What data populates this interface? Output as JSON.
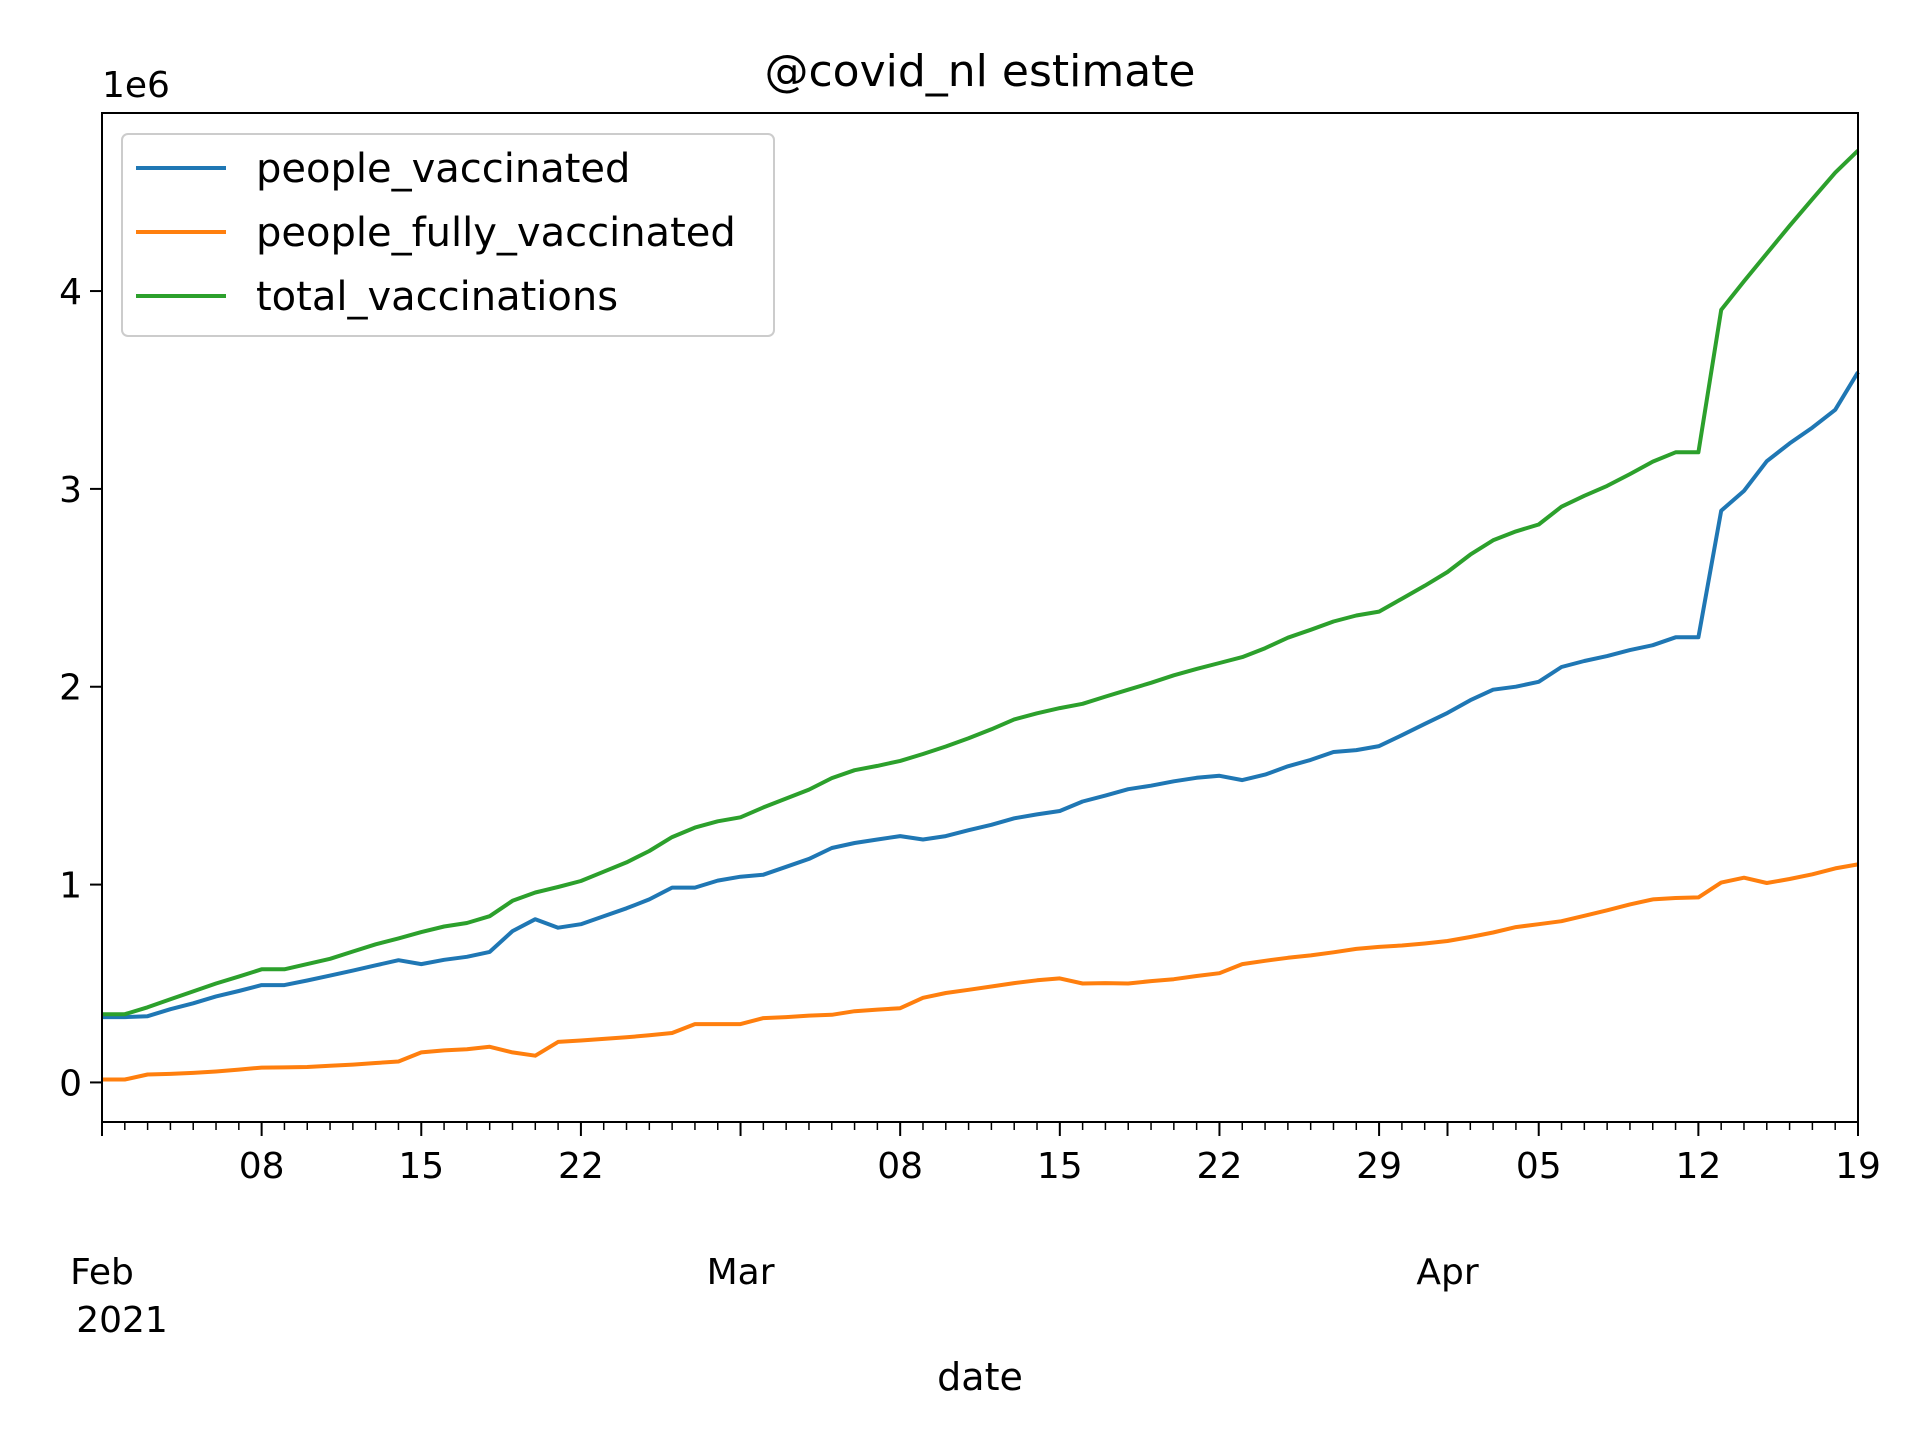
{
  "chart_data": {
    "type": "line",
    "title": "@covid_nl estimate",
    "xlabel": "date",
    "ylabel": "",
    "y_offset_label": "1e6",
    "x_range": [
      "2021-02-01",
      "2021-04-19"
    ],
    "ylim": [
      -200000,
      4900000
    ],
    "yticks": [
      0,
      1000000,
      2000000,
      3000000,
      4000000
    ],
    "ytick_labels": [
      "0",
      "1",
      "2",
      "3",
      "4"
    ],
    "xticks": [
      {
        "date": "2021-02-08",
        "label": "08"
      },
      {
        "date": "2021-02-15",
        "label": "15"
      },
      {
        "date": "2021-02-22",
        "label": "22"
      },
      {
        "date": "2021-03-08",
        "label": "08"
      },
      {
        "date": "2021-03-15",
        "label": "15"
      },
      {
        "date": "2021-03-22",
        "label": "22"
      },
      {
        "date": "2021-03-29",
        "label": "29"
      },
      {
        "date": "2021-04-05",
        "label": "05"
      },
      {
        "date": "2021-04-12",
        "label": "12"
      },
      {
        "date": "2021-04-19",
        "label": "19"
      }
    ],
    "month_labels": [
      {
        "date": "2021-02-01",
        "label": "Feb",
        "sublabel": "2021"
      },
      {
        "date": "2021-03-01",
        "label": "Mar",
        "sublabel": ""
      },
      {
        "date": "2021-04-01",
        "label": "Apr",
        "sublabel": ""
      }
    ],
    "legend_position": "upper-left",
    "grid": false,
    "x_dates": [
      "2021-02-01",
      "2021-02-02",
      "2021-02-03",
      "2021-02-04",
      "2021-02-05",
      "2021-02-06",
      "2021-02-07",
      "2021-02-08",
      "2021-02-09",
      "2021-02-10",
      "2021-02-11",
      "2021-02-12",
      "2021-02-13",
      "2021-02-14",
      "2021-02-15",
      "2021-02-16",
      "2021-02-17",
      "2021-02-18",
      "2021-02-19",
      "2021-02-20",
      "2021-02-21",
      "2021-02-22",
      "2021-02-23",
      "2021-02-24",
      "2021-02-25",
      "2021-02-26",
      "2021-02-27",
      "2021-02-28",
      "2021-03-01",
      "2021-03-02",
      "2021-03-03",
      "2021-03-04",
      "2021-03-05",
      "2021-03-06",
      "2021-03-07",
      "2021-03-08",
      "2021-03-09",
      "2021-03-10",
      "2021-03-11",
      "2021-03-12",
      "2021-03-13",
      "2021-03-14",
      "2021-03-15",
      "2021-03-16",
      "2021-03-17",
      "2021-03-18",
      "2021-03-19",
      "2021-03-20",
      "2021-03-21",
      "2021-03-22",
      "2021-03-23",
      "2021-03-24",
      "2021-03-25",
      "2021-03-26",
      "2021-03-27",
      "2021-03-28",
      "2021-03-29",
      "2021-03-30",
      "2021-03-31",
      "2021-04-01",
      "2021-04-02",
      "2021-04-03",
      "2021-04-04",
      "2021-04-05",
      "2021-04-06",
      "2021-04-07",
      "2021-04-08",
      "2021-04-09",
      "2021-04-10",
      "2021-04-11",
      "2021-04-12",
      "2021-04-13",
      "2021-04-14",
      "2021-04-15",
      "2021-04-16",
      "2021-04-17",
      "2021-04-18",
      "2021-04-19"
    ],
    "series": [
      {
        "name": "people_vaccinated",
        "color": "#1f77b4",
        "values": [
          330000,
          330000,
          335000,
          370000,
          400000,
          435000,
          462000,
          492000,
          492000,
          515000,
          540000,
          565000,
          592000,
          618000,
          598000,
          620000,
          635000,
          660000,
          765000,
          825000,
          782000,
          800000,
          840000,
          880000,
          925000,
          985000,
          985000,
          1020000,
          1040000,
          1050000,
          1090000,
          1130000,
          1185000,
          1210000,
          1228000,
          1245000,
          1228000,
          1245000,
          1275000,
          1302000,
          1335000,
          1355000,
          1372000,
          1420000,
          1450000,
          1482000,
          1500000,
          1522000,
          1540000,
          1550000,
          1528000,
          1556000,
          1598000,
          1630000,
          1670000,
          1680000,
          1700000,
          1755000,
          1812000,
          1868000,
          1932000,
          1985000,
          2000000,
          2025000,
          2100000,
          2130000,
          2155000,
          2185000,
          2210000,
          2250000,
          2250000,
          2890000,
          2990000,
          3140000,
          3230000,
          3310000,
          3400000,
          3590000
        ]
      },
      {
        "name": "people_fully_vaccinated",
        "color": "#ff7f0e",
        "values": [
          15000,
          15000,
          40000,
          43000,
          48000,
          55000,
          65000,
          75000,
          76000,
          78000,
          84000,
          90000,
          98000,
          106000,
          152000,
          162000,
          168000,
          180000,
          152000,
          135000,
          205000,
          212000,
          220000,
          228000,
          238000,
          250000,
          295000,
          295000,
          295000,
          325000,
          330000,
          338000,
          342000,
          360000,
          368000,
          375000,
          428000,
          452000,
          468000,
          485000,
          502000,
          516000,
          526000,
          500000,
          502000,
          500000,
          512000,
          522000,
          538000,
          552000,
          598000,
          615000,
          630000,
          642000,
          658000,
          675000,
          685000,
          692000,
          702000,
          715000,
          735000,
          758000,
          785000,
          800000,
          815000,
          842000,
          870000,
          900000,
          925000,
          932000,
          935000,
          1010000,
          1035000,
          1008000,
          1028000,
          1052000,
          1082000,
          1102000
        ]
      },
      {
        "name": "total_vaccinations",
        "color": "#2ca02c",
        "values": [
          345000,
          345000,
          380000,
          420000,
          460000,
          500000,
          535000,
          572000,
          572000,
          598000,
          625000,
          662000,
          698000,
          728000,
          760000,
          788000,
          806000,
          840000,
          918000,
          960000,
          988000,
          1018000,
          1065000,
          1112000,
          1170000,
          1240000,
          1288000,
          1320000,
          1340000,
          1390000,
          1435000,
          1480000,
          1538000,
          1578000,
          1600000,
          1625000,
          1660000,
          1698000,
          1740000,
          1785000,
          1835000,
          1866000,
          1892000,
          1914000,
          1950000,
          1985000,
          2020000,
          2058000,
          2090000,
          2120000,
          2150000,
          2195000,
          2248000,
          2288000,
          2330000,
          2360000,
          2380000,
          2445000,
          2510000,
          2580000,
          2668000,
          2740000,
          2785000,
          2820000,
          2910000,
          2965000,
          3015000,
          3075000,
          3138000,
          3185000,
          3185000,
          3905000,
          4050000,
          4190000,
          4330000,
          4465000,
          4598000,
          4710000
        ]
      }
    ]
  }
}
